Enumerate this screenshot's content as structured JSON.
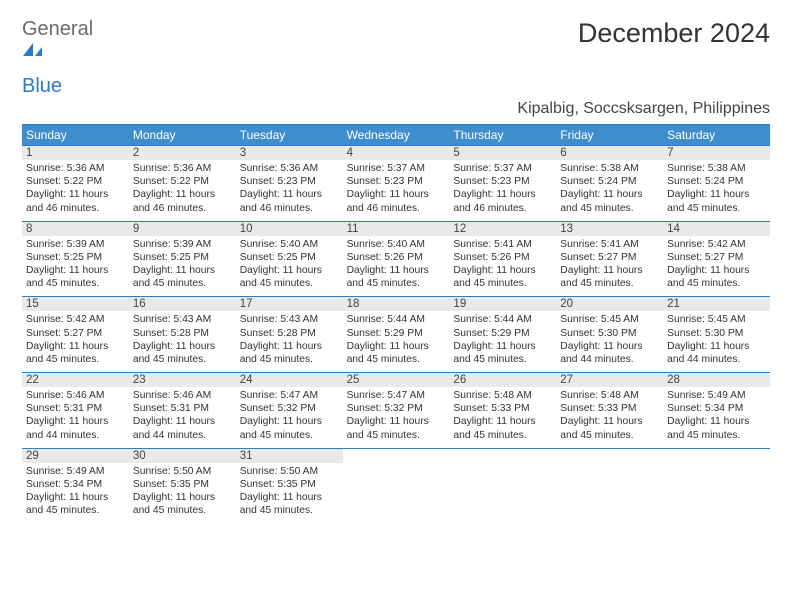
{
  "brand": {
    "word1": "General",
    "word2": "Blue"
  },
  "title": "December 2024",
  "location": "Kipalbig, Soccsksargen, Philippines",
  "colors": {
    "accent": "#2f7ac0",
    "header_bg": "#3e8ecd",
    "daynum_bg": "#e9e9e9",
    "text": "#333333",
    "logo_gray": "#6a6a6a"
  },
  "weekdays": [
    "Sunday",
    "Monday",
    "Tuesday",
    "Wednesday",
    "Thursday",
    "Friday",
    "Saturday"
  ],
  "weeks": [
    [
      {
        "n": "1",
        "sr": "Sunrise: 5:36 AM",
        "ss": "Sunset: 5:22 PM",
        "d1": "Daylight: 11 hours",
        "d2": "and 46 minutes."
      },
      {
        "n": "2",
        "sr": "Sunrise: 5:36 AM",
        "ss": "Sunset: 5:22 PM",
        "d1": "Daylight: 11 hours",
        "d2": "and 46 minutes."
      },
      {
        "n": "3",
        "sr": "Sunrise: 5:36 AM",
        "ss": "Sunset: 5:23 PM",
        "d1": "Daylight: 11 hours",
        "d2": "and 46 minutes."
      },
      {
        "n": "4",
        "sr": "Sunrise: 5:37 AM",
        "ss": "Sunset: 5:23 PM",
        "d1": "Daylight: 11 hours",
        "d2": "and 46 minutes."
      },
      {
        "n": "5",
        "sr": "Sunrise: 5:37 AM",
        "ss": "Sunset: 5:23 PM",
        "d1": "Daylight: 11 hours",
        "d2": "and 46 minutes."
      },
      {
        "n": "6",
        "sr": "Sunrise: 5:38 AM",
        "ss": "Sunset: 5:24 PM",
        "d1": "Daylight: 11 hours",
        "d2": "and 45 minutes."
      },
      {
        "n": "7",
        "sr": "Sunrise: 5:38 AM",
        "ss": "Sunset: 5:24 PM",
        "d1": "Daylight: 11 hours",
        "d2": "and 45 minutes."
      }
    ],
    [
      {
        "n": "8",
        "sr": "Sunrise: 5:39 AM",
        "ss": "Sunset: 5:25 PM",
        "d1": "Daylight: 11 hours",
        "d2": "and 45 minutes."
      },
      {
        "n": "9",
        "sr": "Sunrise: 5:39 AM",
        "ss": "Sunset: 5:25 PM",
        "d1": "Daylight: 11 hours",
        "d2": "and 45 minutes."
      },
      {
        "n": "10",
        "sr": "Sunrise: 5:40 AM",
        "ss": "Sunset: 5:25 PM",
        "d1": "Daylight: 11 hours",
        "d2": "and 45 minutes."
      },
      {
        "n": "11",
        "sr": "Sunrise: 5:40 AM",
        "ss": "Sunset: 5:26 PM",
        "d1": "Daylight: 11 hours",
        "d2": "and 45 minutes."
      },
      {
        "n": "12",
        "sr": "Sunrise: 5:41 AM",
        "ss": "Sunset: 5:26 PM",
        "d1": "Daylight: 11 hours",
        "d2": "and 45 minutes."
      },
      {
        "n": "13",
        "sr": "Sunrise: 5:41 AM",
        "ss": "Sunset: 5:27 PM",
        "d1": "Daylight: 11 hours",
        "d2": "and 45 minutes."
      },
      {
        "n": "14",
        "sr": "Sunrise: 5:42 AM",
        "ss": "Sunset: 5:27 PM",
        "d1": "Daylight: 11 hours",
        "d2": "and 45 minutes."
      }
    ],
    [
      {
        "n": "15",
        "sr": "Sunrise: 5:42 AM",
        "ss": "Sunset: 5:27 PM",
        "d1": "Daylight: 11 hours",
        "d2": "and 45 minutes."
      },
      {
        "n": "16",
        "sr": "Sunrise: 5:43 AM",
        "ss": "Sunset: 5:28 PM",
        "d1": "Daylight: 11 hours",
        "d2": "and 45 minutes."
      },
      {
        "n": "17",
        "sr": "Sunrise: 5:43 AM",
        "ss": "Sunset: 5:28 PM",
        "d1": "Daylight: 11 hours",
        "d2": "and 45 minutes."
      },
      {
        "n": "18",
        "sr": "Sunrise: 5:44 AM",
        "ss": "Sunset: 5:29 PM",
        "d1": "Daylight: 11 hours",
        "d2": "and 45 minutes."
      },
      {
        "n": "19",
        "sr": "Sunrise: 5:44 AM",
        "ss": "Sunset: 5:29 PM",
        "d1": "Daylight: 11 hours",
        "d2": "and 45 minutes."
      },
      {
        "n": "20",
        "sr": "Sunrise: 5:45 AM",
        "ss": "Sunset: 5:30 PM",
        "d1": "Daylight: 11 hours",
        "d2": "and 44 minutes."
      },
      {
        "n": "21",
        "sr": "Sunrise: 5:45 AM",
        "ss": "Sunset: 5:30 PM",
        "d1": "Daylight: 11 hours",
        "d2": "and 44 minutes."
      }
    ],
    [
      {
        "n": "22",
        "sr": "Sunrise: 5:46 AM",
        "ss": "Sunset: 5:31 PM",
        "d1": "Daylight: 11 hours",
        "d2": "and 44 minutes."
      },
      {
        "n": "23",
        "sr": "Sunrise: 5:46 AM",
        "ss": "Sunset: 5:31 PM",
        "d1": "Daylight: 11 hours",
        "d2": "and 44 minutes."
      },
      {
        "n": "24",
        "sr": "Sunrise: 5:47 AM",
        "ss": "Sunset: 5:32 PM",
        "d1": "Daylight: 11 hours",
        "d2": "and 45 minutes."
      },
      {
        "n": "25",
        "sr": "Sunrise: 5:47 AM",
        "ss": "Sunset: 5:32 PM",
        "d1": "Daylight: 11 hours",
        "d2": "and 45 minutes."
      },
      {
        "n": "26",
        "sr": "Sunrise: 5:48 AM",
        "ss": "Sunset: 5:33 PM",
        "d1": "Daylight: 11 hours",
        "d2": "and 45 minutes."
      },
      {
        "n": "27",
        "sr": "Sunrise: 5:48 AM",
        "ss": "Sunset: 5:33 PM",
        "d1": "Daylight: 11 hours",
        "d2": "and 45 minutes."
      },
      {
        "n": "28",
        "sr": "Sunrise: 5:49 AM",
        "ss": "Sunset: 5:34 PM",
        "d1": "Daylight: 11 hours",
        "d2": "and 45 minutes."
      }
    ],
    [
      {
        "n": "29",
        "sr": "Sunrise: 5:49 AM",
        "ss": "Sunset: 5:34 PM",
        "d1": "Daylight: 11 hours",
        "d2": "and 45 minutes."
      },
      {
        "n": "30",
        "sr": "Sunrise: 5:50 AM",
        "ss": "Sunset: 5:35 PM",
        "d1": "Daylight: 11 hours",
        "d2": "and 45 minutes."
      },
      {
        "n": "31",
        "sr": "Sunrise: 5:50 AM",
        "ss": "Sunset: 5:35 PM",
        "d1": "Daylight: 11 hours",
        "d2": "and 45 minutes."
      },
      null,
      null,
      null,
      null
    ]
  ]
}
